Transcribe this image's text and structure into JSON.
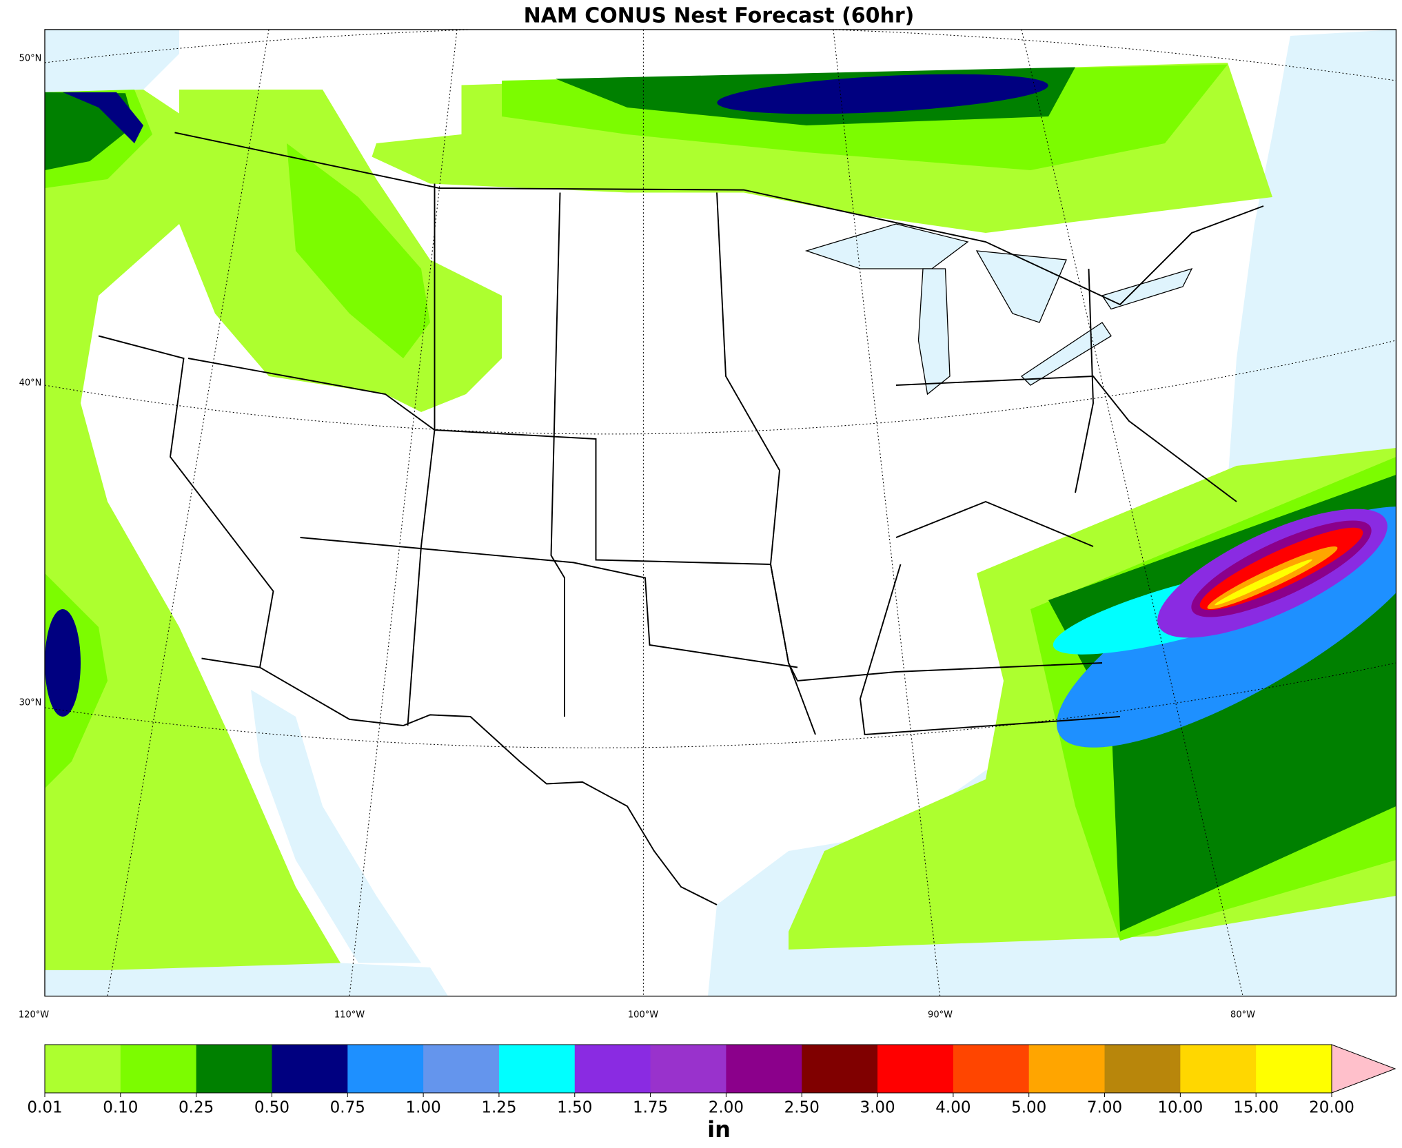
{
  "title": "NAM CONUS Nest Forecast (60hr)",
  "map": {
    "lat_labels": [
      "50°N",
      "40°N",
      "30°N"
    ],
    "lon_labels": [
      "120°W",
      "110°W",
      "100°W",
      "90°W",
      "80°W"
    ]
  },
  "colorbar": {
    "levels": [
      {
        "value": 0.01,
        "label": "0.01"
      },
      {
        "value": 0.1,
        "label": "0.10"
      },
      {
        "value": 0.25,
        "label": "0.25"
      },
      {
        "value": 0.5,
        "label": "0.50"
      },
      {
        "value": 0.75,
        "label": "0.75"
      },
      {
        "value": 1,
        "label": "1.00"
      },
      {
        "value": 1.25,
        "label": "1.25"
      },
      {
        "value": 1.5,
        "label": "1.50"
      },
      {
        "value": 1.75,
        "label": "1.75"
      },
      {
        "value": 2,
        "label": "2.00"
      },
      {
        "value": 2.5,
        "label": "2.50"
      },
      {
        "value": 3,
        "label": "3.00"
      },
      {
        "value": 4,
        "label": "4.00"
      },
      {
        "value": 5,
        "label": "5.00"
      },
      {
        "value": 7,
        "label": "7.00"
      },
      {
        "value": 10,
        "label": "10.00"
      },
      {
        "value": 15,
        "label": "15.00"
      },
      {
        "value": 20,
        "label": "20.00"
      }
    ],
    "colors": [
      "#adff2f",
      "#7cfc00",
      "#008000",
      "#000080",
      "#1e90ff",
      "#6495ed",
      "#00ffff",
      "#8a2be2",
      "#9932cc",
      "#8b008b",
      "#800000",
      "#ff0000",
      "#ff4500",
      "#ffa500",
      "#b8860b",
      "#ffd700",
      "#ffff00"
    ],
    "extend_color": "#ffc0cb",
    "unit": "in"
  }
}
